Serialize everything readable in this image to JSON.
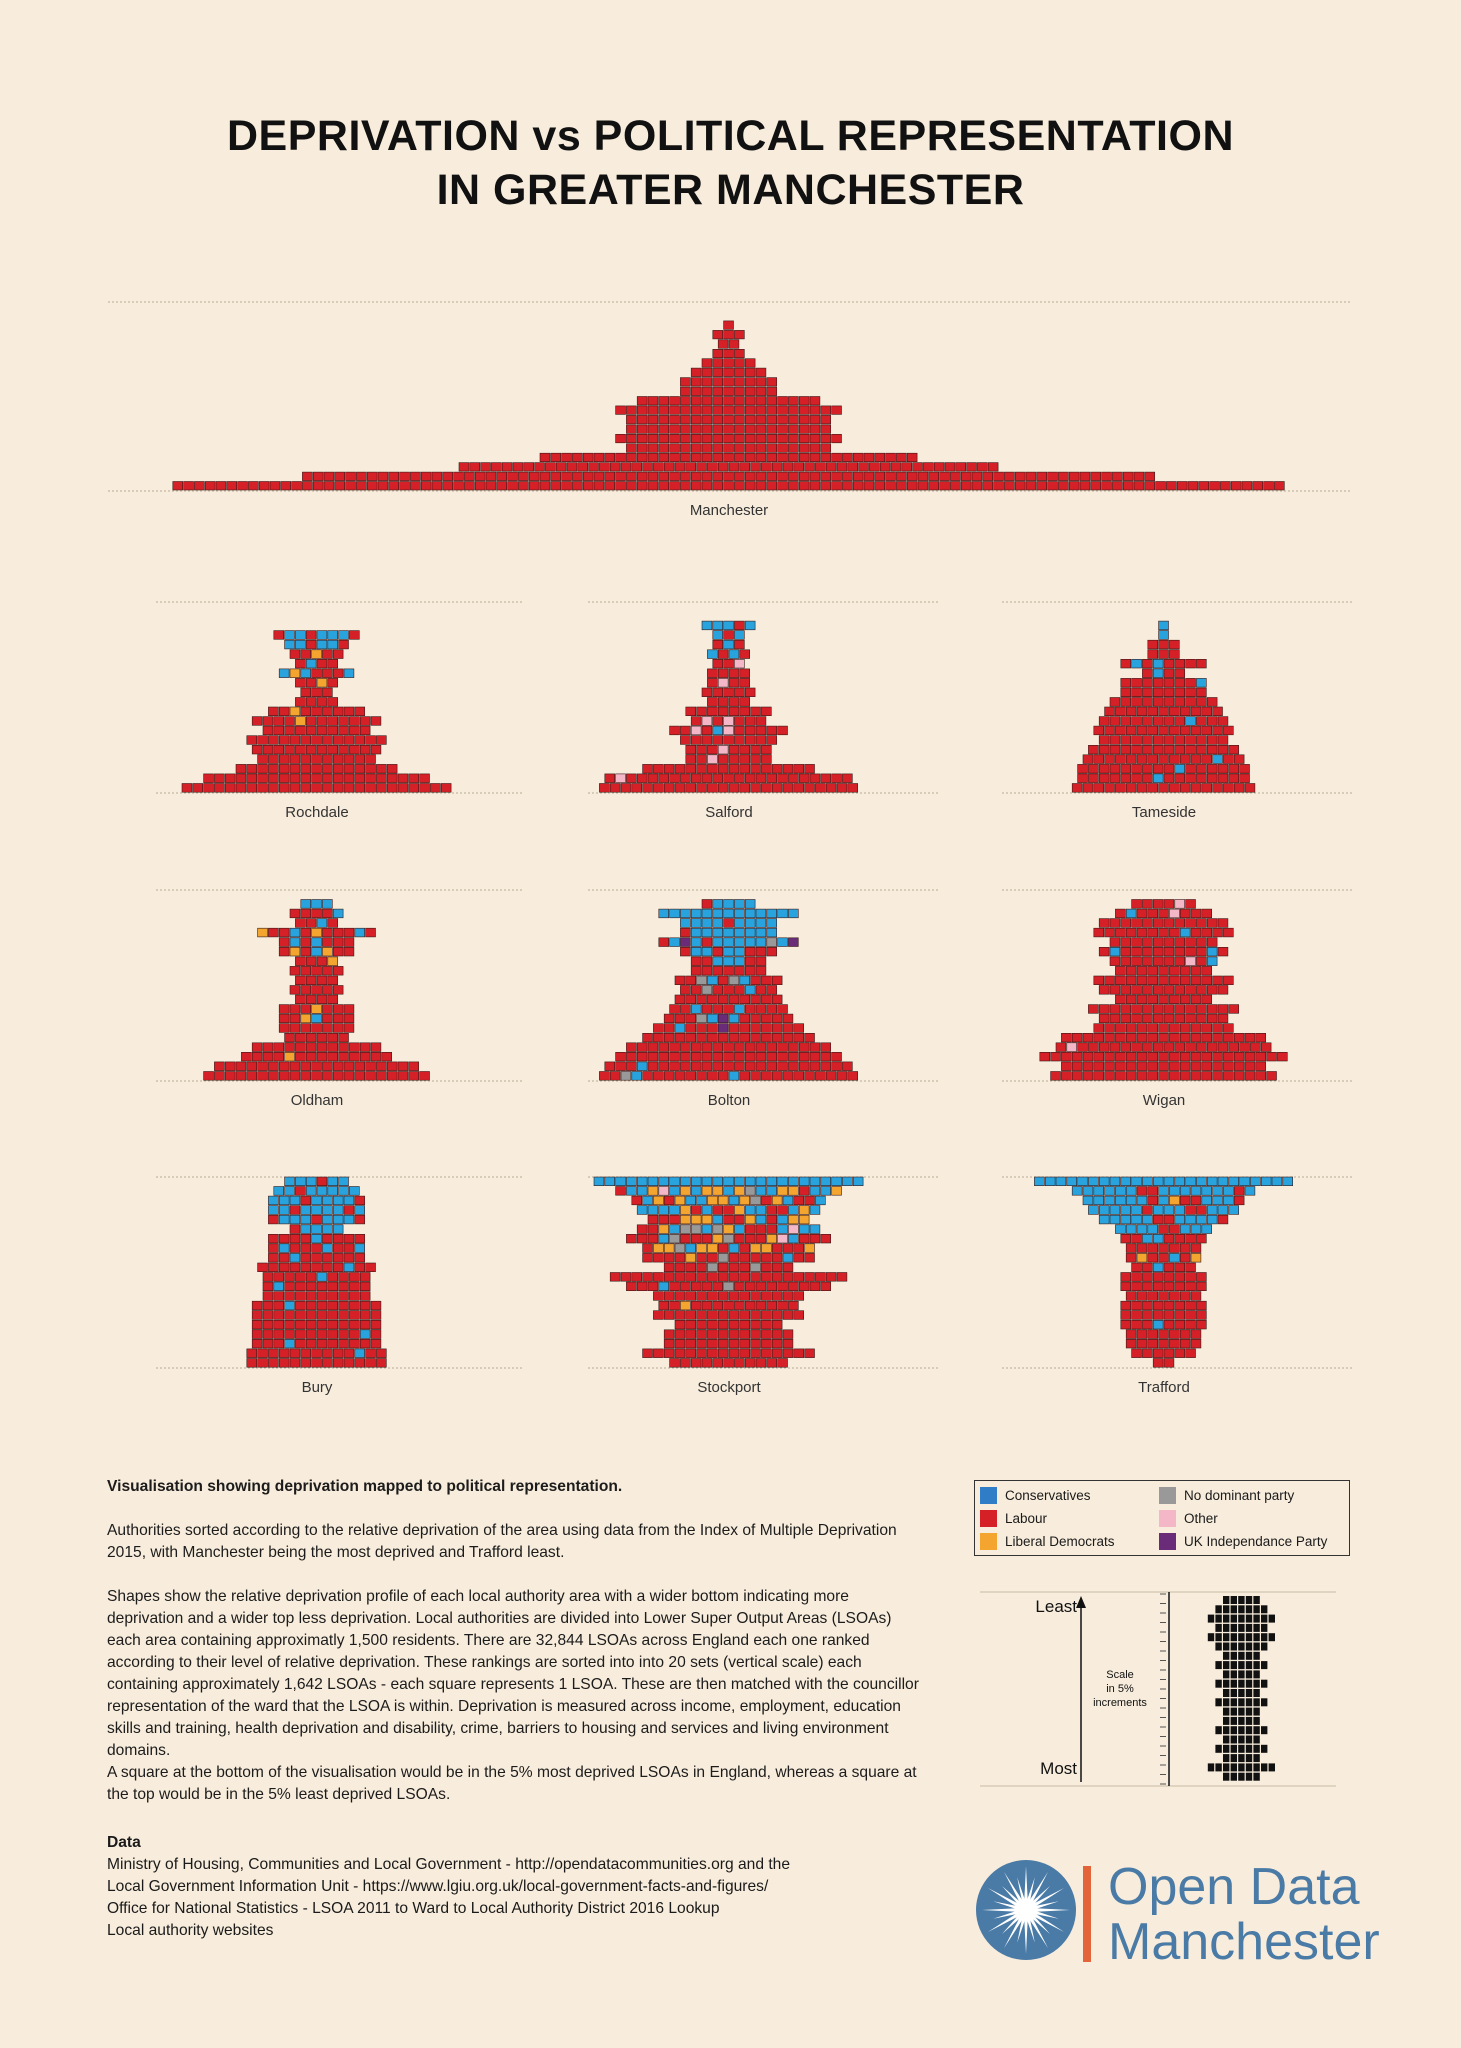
{
  "title": {
    "line1": "DEPRIVATION vs POLITICAL REPRESENTATION",
    "line2": "IN GREATER MANCHESTER"
  },
  "colors": {
    "background": "#f8eddc",
    "C": "#29a3dd",
    "L": "#d62027",
    "D": "#f3a530",
    "N": "#999999",
    "O": "#f3b7c8",
    "U": "#6a2b79"
  },
  "chart_data": {
    "type": "diverging stacked unit (square) chart — 20 deprivation bands per local authority",
    "title": "DEPRIVATION vs POLITICAL REPRESENTATION IN GREATER MANCHESTER",
    "row_order": "index 0 = 5% least deprived (top), index 19 = 5% most deprived (bottom)",
    "unit": "1 square = 1 LSOA",
    "codes": {
      "C": "Conservatives",
      "L": "Labour",
      "D": "Liberal Democrats",
      "N": "No dominant party",
      "O": "Other",
      "U": "UK Independance Party"
    },
    "authorities": [
      {
        "name": "Manchester",
        "rows": [
          "",
          "",
          "L",
          "LLL",
          "LL",
          "LLL",
          "LLLLL",
          "LLLLLLL",
          "LLLLLLLLL",
          "LLLLLLLLL",
          "LLLLLLLLLLLLLLLLL",
          "LLLLLLLLLLLLLLLLLLLLL",
          "LLLLLLLLLLLLLLLLLLL",
          "LLLLLLLLLLLLLLLLLLL",
          "LLLLLLLLLLLLLLLLLLLLL",
          "LLLLLLLLLLLLLLLLLLL",
          "LLLLLLLLLLLLLLLLLLLLLLLLLLLLLLLLLLL",
          "LLLLLLLLLLLLLLLLLLLLLLLLLLLLLLLLLLLLLLLLLLLLLLLLLL",
          "LLLLLLLLLLLLLLLLLLLLLLLLLLLLLLLLLLLLLLLLLLLLLLLLLLLLLLLLLLLLLLLLLLLLLLLLLLLLLLL",
          "LLLLLLLLLLLLLLLLLLLLLLLLLLLLLLLLLLLLLLLLLLLLLLLLLLLLLLLLLLLLLLLLLLLLLLLLLLLLLLLLLLLLLLLLLLLLLLLLLLLLLLL"
        ]
      },
      {
        "name": "Rochdale",
        "rows": [
          "",
          "",
          "",
          "LCCLCCCL",
          "CCLCCL",
          "LLDLL",
          "LCLL",
          "CDCLLLC",
          "LLDL",
          "LLL",
          "LLLL",
          "LLDLLLLLL",
          "LLLLDLLLLLLL",
          "LLLLLLLLLL",
          "LLLLLLLLLLLLL",
          "LLLLLLLLLLLL",
          "LLLLLLLLLLL",
          "LLLLLLLLLLLLLLL",
          "LLLLLLLLLLLLLLLLLLLLL",
          "LLLLLLLLLLLLLLLLLLLLLLLLL"
        ]
      },
      {
        "name": "Salford",
        "rows": [
          "",
          "",
          "CCCLC",
          "CLC",
          "LCL",
          "CLCL",
          "LLO",
          "LLLL",
          "LOLL",
          "LLLLL",
          "LLLL",
          "LLLLLLLL",
          "LOLOLLL",
          "LLOLCOLLLLL",
          "LLLLLLLLL",
          "LLLOLLLL",
          "LLOLLLLL",
          "LLLLLLLLLLLLLLLL",
          "LOLLLLLLLLLLLLLLLLLLLLL",
          "LLLLLLLLLLLLLLLLLLLLLLLL"
        ]
      },
      {
        "name": "Tameside",
        "rows": [
          "",
          "",
          "C",
          "C",
          "LLL",
          "LLL",
          "LCLCLLLL",
          "LCLL",
          "LLLLLLLC",
          "LLLLLLLL",
          "LLLLLLLLLL",
          "LLLLLLLLLLL",
          "LLLLLLLLCLLL",
          "LLLLLLLLLLLLL",
          "LLLLLLLLLLLL",
          "LLLLLLLLLLLLLL",
          "LLLLLLLLLLLLCLL",
          "LLLLLLLLLCLLLLLL",
          "LLLLLLLCLLLLLLLL",
          "LLLLLLLLLLLLLLLLL"
        ]
      },
      {
        "name": "Oldham",
        "rows": [
          "",
          "CCC",
          "LLLLC",
          "LLCL",
          "DLLCLDLLLCL",
          "LCLCLLL",
          "LDLCDLL",
          "LLLD",
          "LLLLL",
          "LLLL",
          "LLLLL",
          "LLLL",
          "LLLDLLL",
          "LLDCLLL",
          "LLLLLLL",
          "LLLLLL",
          "LLLLLLLLLLLL",
          "LLLLDLLLLLLLLL",
          "LLLLLLLLLLLLLLLLLLL",
          "LLLLLLLLLLLLLLLLLLLLL"
        ]
      },
      {
        "name": "Bolton",
        "rows": [
          "",
          "LCCCC",
          "CCCCCCCCCCCCC",
          "CCCCLCCCC",
          "LCCCCCCCC",
          "LCUCLCCCCCNCU",
          "LCCLCCLLL",
          "LLCCCLL",
          "LLLLLLL",
          "LLNCLNCLLL",
          "LLNLLLCLL",
          "LLLLLLLLLL",
          "LLCLLLCLLLL",
          "LLLNCUCLLLLL",
          "LLCLLLULLLLLLL",
          "LLLLLLLLLLLLLLLL",
          "LLLLLLLLLLLLLLLLLLL",
          "LLLLLLLLLLLLLLLLLLLLL",
          "LLLCLLLLLLLLLLLLLLLLLLL",
          "LLNCLLLLLLLLCLLLLLLLLLLL"
        ]
      },
      {
        "name": "Wigan",
        "rows": [
          "",
          "LLLLOL",
          "LCLLLOLLL",
          "LLLLLLLLLLLL",
          "LLLLLLLLCLLLL",
          "LLLLLLLLLL",
          "LCLLLLLLLLCL",
          "LLLLLLLOLC",
          "LLLLLLLLL",
          "LLLLLLLLLLLLL",
          "LLLLLLLLLLLL",
          "LLLLLLLLL",
          "LLLLLLLLLLLLLL",
          "LLLLLLLLLLLL",
          "LLLLLLLLLLLLL",
          "LLLLLLLLLLLLLLLLLLL",
          "LOLLLLLLLLLLLLLLLLLL",
          "LLLLLLLLLLLLLLLLLLLLLLL",
          "LLLLLLLLLLLLLLLLLLL",
          "LLLLLLLLLLLLLLLLLLLLL"
        ]
      },
      {
        "name": "Bury",
        "rows": [
          "CCCLCC",
          "CCLCCCCC",
          "CCCLCCCCL",
          "CCLCCCCLC",
          "LCCCLCCCL",
          "LCCCC",
          "LLLLCLLLL",
          "LCLLLCLLC",
          "LLCLLLLLL",
          "LLLLLLLLCLL",
          "LLLLLCLLLL",
          "LCLLLLLLLL",
          "LLLLLLLLLL",
          "LLLCLLLLLLLL",
          "LLLLLLLLLLLL",
          "LLLLLLLLLLLL",
          "LLLLLLLLLLCL",
          "LLLCLLLLLLLL",
          "LLLLLLLLLLCLL",
          "LLLLLLLLLLLLL"
        ]
      },
      {
        "name": "Stockport",
        "rows": [
          "CCCCCCCCCCCCCCCCCCCCCCCCC",
          "LCCDOCDCDDCDNCCDDLCCD",
          "LCDLDCCDDCDNLDCLLC",
          "CCCCDLCLLDCCLLCDC",
          "LLLDDDCLLDCLCDD",
          "LLDCNNCNDCLLLCOCC",
          "LLLCNLLLDNLLLDOCLLL",
          "LDDNCDDLCLDDLLLD",
          "LLLLDLLNLLLLLCLL",
          "LLLLNLLLNLLL",
          "LLLLLLLLLLLLLLLLLLLLLL",
          "LLLCLLLLLNLLLLLLLLL",
          "LLLLLLLLLLLLLL",
          "LLDLLLLLLLLLL",
          "LLLLLLLLLLLLLL",
          "LLLLLLLLLL",
          "LLLLLLLLLLLL",
          "LLLLLLLLLLLL",
          "LLLLLLLLLLLLLLLL",
          "LLLLLLLLLLL"
        ]
      },
      {
        "name": "Trafford",
        "rows": [
          "CCCCCCCCCCCCCCCCCCCCCCCC",
          "CCCCCCLLCCCCCCCLC",
          "CCCCCCLCDLLCCCL",
          "CCCCCLCCCLLCCC",
          "CCCCCLLCCCCL",
          "CCCCLLCCC",
          "LLCCLLLL",
          "LLLLLLL",
          "LDLLCLD",
          "LLCLLL",
          "LLLLLLLL",
          "LLLLLLLL",
          "LLLLLLL",
          "LLLLLLLL",
          "LLLLLLLL",
          "LLLCLLLL",
          "LLLLLLL",
          "LLLLLLL",
          "LLLLLL",
          "LL"
        ]
      }
    ],
    "legend": [
      {
        "code": "C",
        "label": "Conservatives"
      },
      {
        "code": "L",
        "label": "Labour"
      },
      {
        "code": "D",
        "label": "Liberal Democrats"
      },
      {
        "code": "N",
        "label": "No dominant party"
      },
      {
        "code": "O",
        "label": "Other"
      },
      {
        "code": "U",
        "label": "UK Independance Party"
      }
    ],
    "scale": {
      "top_label": "Least",
      "bottom_label": "Most",
      "note": [
        "Scale",
        "in 5%",
        "increments"
      ],
      "example_row_widths": [
        5,
        7,
        9,
        7,
        9,
        7,
        5,
        7,
        5,
        7,
        5,
        7,
        5,
        5,
        7,
        5,
        7,
        5,
        9,
        5
      ]
    }
  },
  "description": {
    "heading": "Visualisation showing deprivation mapped to political representation.",
    "p1": "Authorities sorted according to the relative deprivation of the area using data from the Index of Multiple Deprivation 2015, with Manchester being the most deprived and Trafford least.",
    "p2": "Shapes show the relative deprivation profile of each local authority area with a wider bottom indicating more deprivation and a wider top less deprivation. Local authorities are divided into Lower Super Output Areas (LSOAs) each area containing approximatly 1,500 residents. There are 32,844 LSOAs across England each one ranked according to their level of relative deprivation. These rankings are sorted into into 20 sets (vertical scale) each containing approximately 1,642 LSOAs - each square represents 1 LSOA. These are then matched with the councillor representation of the ward that the LSOA is within. Deprivation is measured across income, employment, education skills and training, health deprivation and disability, crime, barriers to housing and services and living environment domains.",
    "p3": "A square at the bottom of the visualisation would be in the 5% most deprived LSOAs in England, whereas a square at the top would be in the 5% least deprived LSOAs."
  },
  "data_section": {
    "heading": "Data",
    "lines": [
      "Ministry of Housing, Communities and Local Government - http://opendatacommunities.org and the",
      "Local Government Information Unit - https://www.lgiu.org.uk/local-government-facts-and-figures/",
      "Office for National Statistics - LSOA 2011 to Ward to Local Authority District 2016 Lookup",
      "Local authority websites"
    ]
  },
  "logo": {
    "line1": "Open Data",
    "line2": "Manchester"
  }
}
